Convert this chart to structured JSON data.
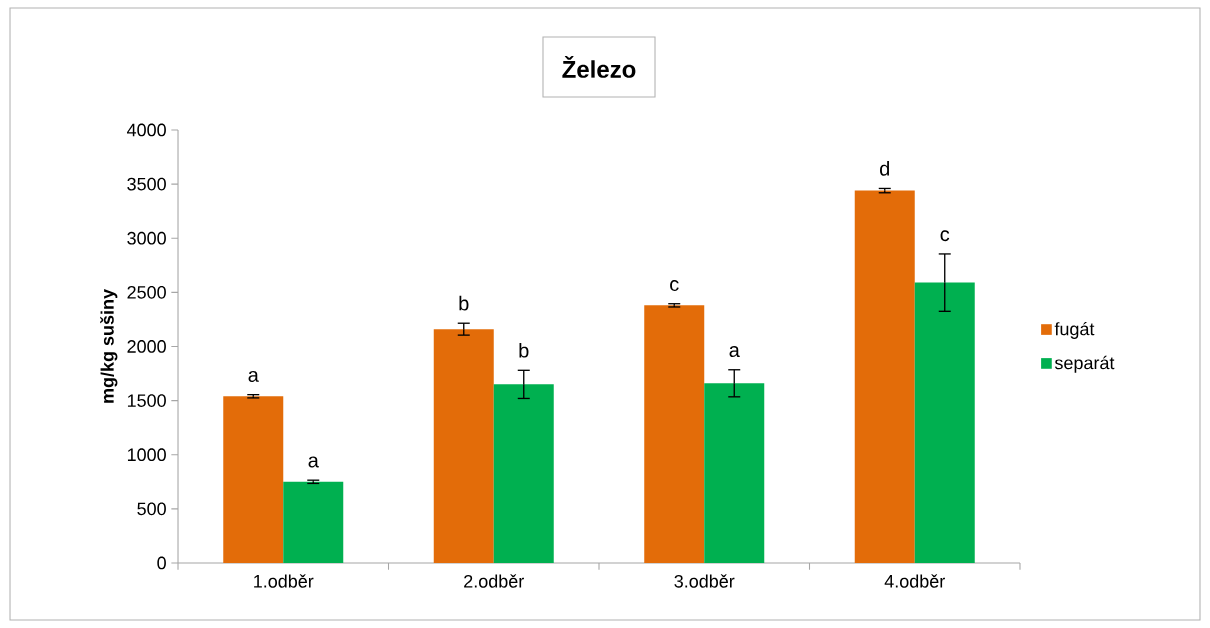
{
  "chart_data": {
    "type": "bar",
    "title": "Železo",
    "ylabel": "mg/kg sušiny",
    "categories": [
      "1.odběr",
      "2.odběr",
      "3.odběr",
      "4.odběr"
    ],
    "series": [
      {
        "name": "fugát",
        "color": "#e36c09",
        "values": [
          1540,
          2160,
          2380,
          3440
        ],
        "errors": [
          15,
          55,
          15,
          20
        ],
        "value_labels": [
          "a",
          "b",
          "c",
          "d"
        ]
      },
      {
        "name": "separát",
        "color": "#00b050",
        "values": [
          750,
          1650,
          1660,
          2590
        ],
        "errors": [
          15,
          130,
          125,
          265
        ],
        "value_labels": [
          "a",
          "b",
          "a",
          "c"
        ]
      }
    ],
    "ylim": [
      0,
      4000
    ],
    "yticks": [
      0,
      500,
      1000,
      1500,
      2000,
      2500,
      3000,
      3500,
      4000
    ],
    "legend": "right"
  }
}
